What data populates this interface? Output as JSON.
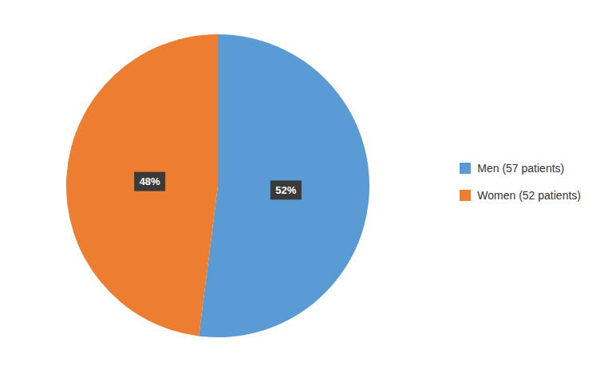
{
  "chart_data": {
    "type": "pie",
    "categories": [
      "Men (57 patients)",
      "Women (52 patients)"
    ],
    "values": [
      52,
      48
    ],
    "value_labels": [
      "52%",
      "48%"
    ],
    "colors": [
      "#5B9BD5",
      "#ED7D31"
    ],
    "data_labels": true,
    "legend": "right"
  }
}
